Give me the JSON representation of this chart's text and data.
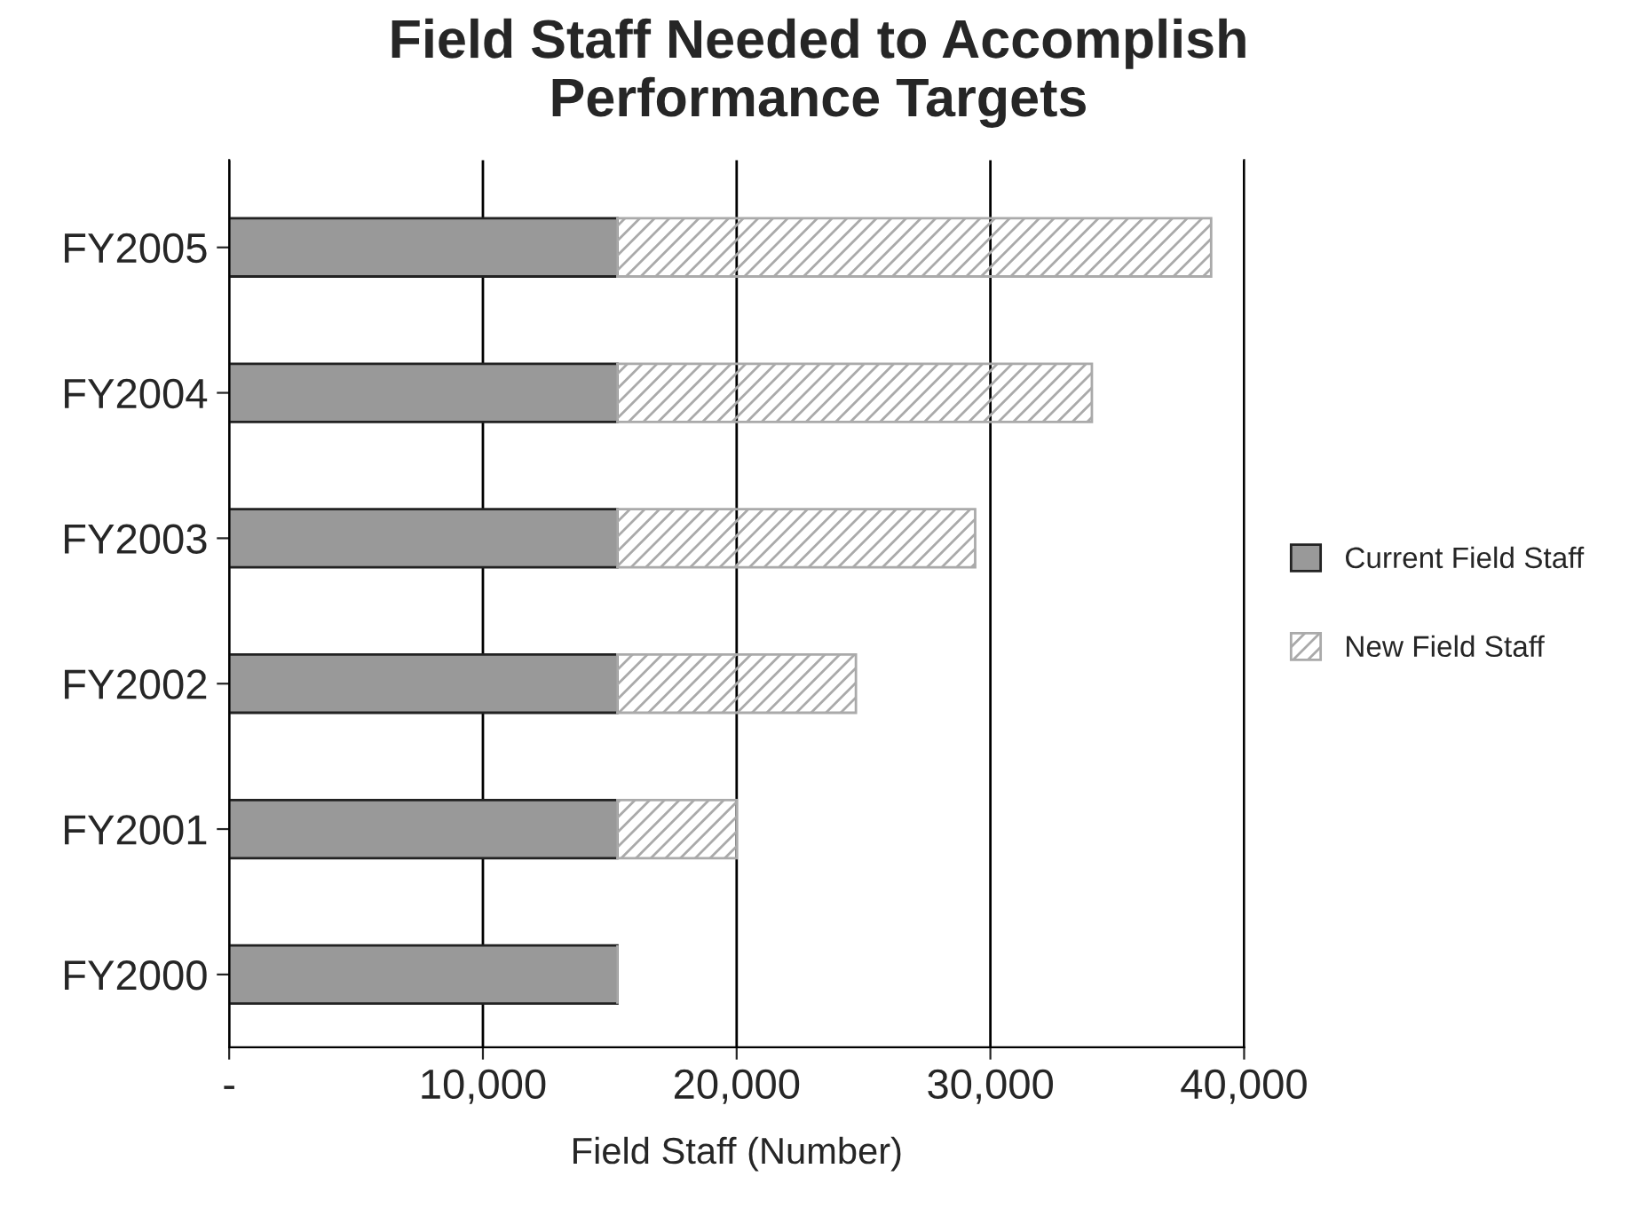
{
  "chart_data": {
    "type": "bar",
    "orientation": "horizontal",
    "stacked": true,
    "title": "Field Staff Needed to Accomplish\nPerformance Targets",
    "xlabel": "Field Staff (Number)",
    "categories": [
      "FY2005",
      "FY2004",
      "FY2003",
      "FY2002",
      "FY2001",
      "FY2000"
    ],
    "series": [
      {
        "name": "Current Field Staff",
        "color": "#999999",
        "values": [
          15300,
          15300,
          15300,
          15300,
          15300,
          15300
        ]
      },
      {
        "name": "New Field Staff",
        "color": "#aaaaaa",
        "values": [
          23400,
          18700,
          14100,
          9400,
          4700,
          0
        ]
      }
    ],
    "xlim": [
      0,
      40000
    ],
    "xticks": [
      {
        "value": 0,
        "label": "-"
      },
      {
        "value": 10000,
        "label": "10,000"
      },
      {
        "value": 20000,
        "label": "20,000"
      },
      {
        "value": 30000,
        "label": "30,000"
      },
      {
        "value": 40000,
        "label": "40,000"
      }
    ],
    "grid": "x",
    "legend": "right"
  }
}
